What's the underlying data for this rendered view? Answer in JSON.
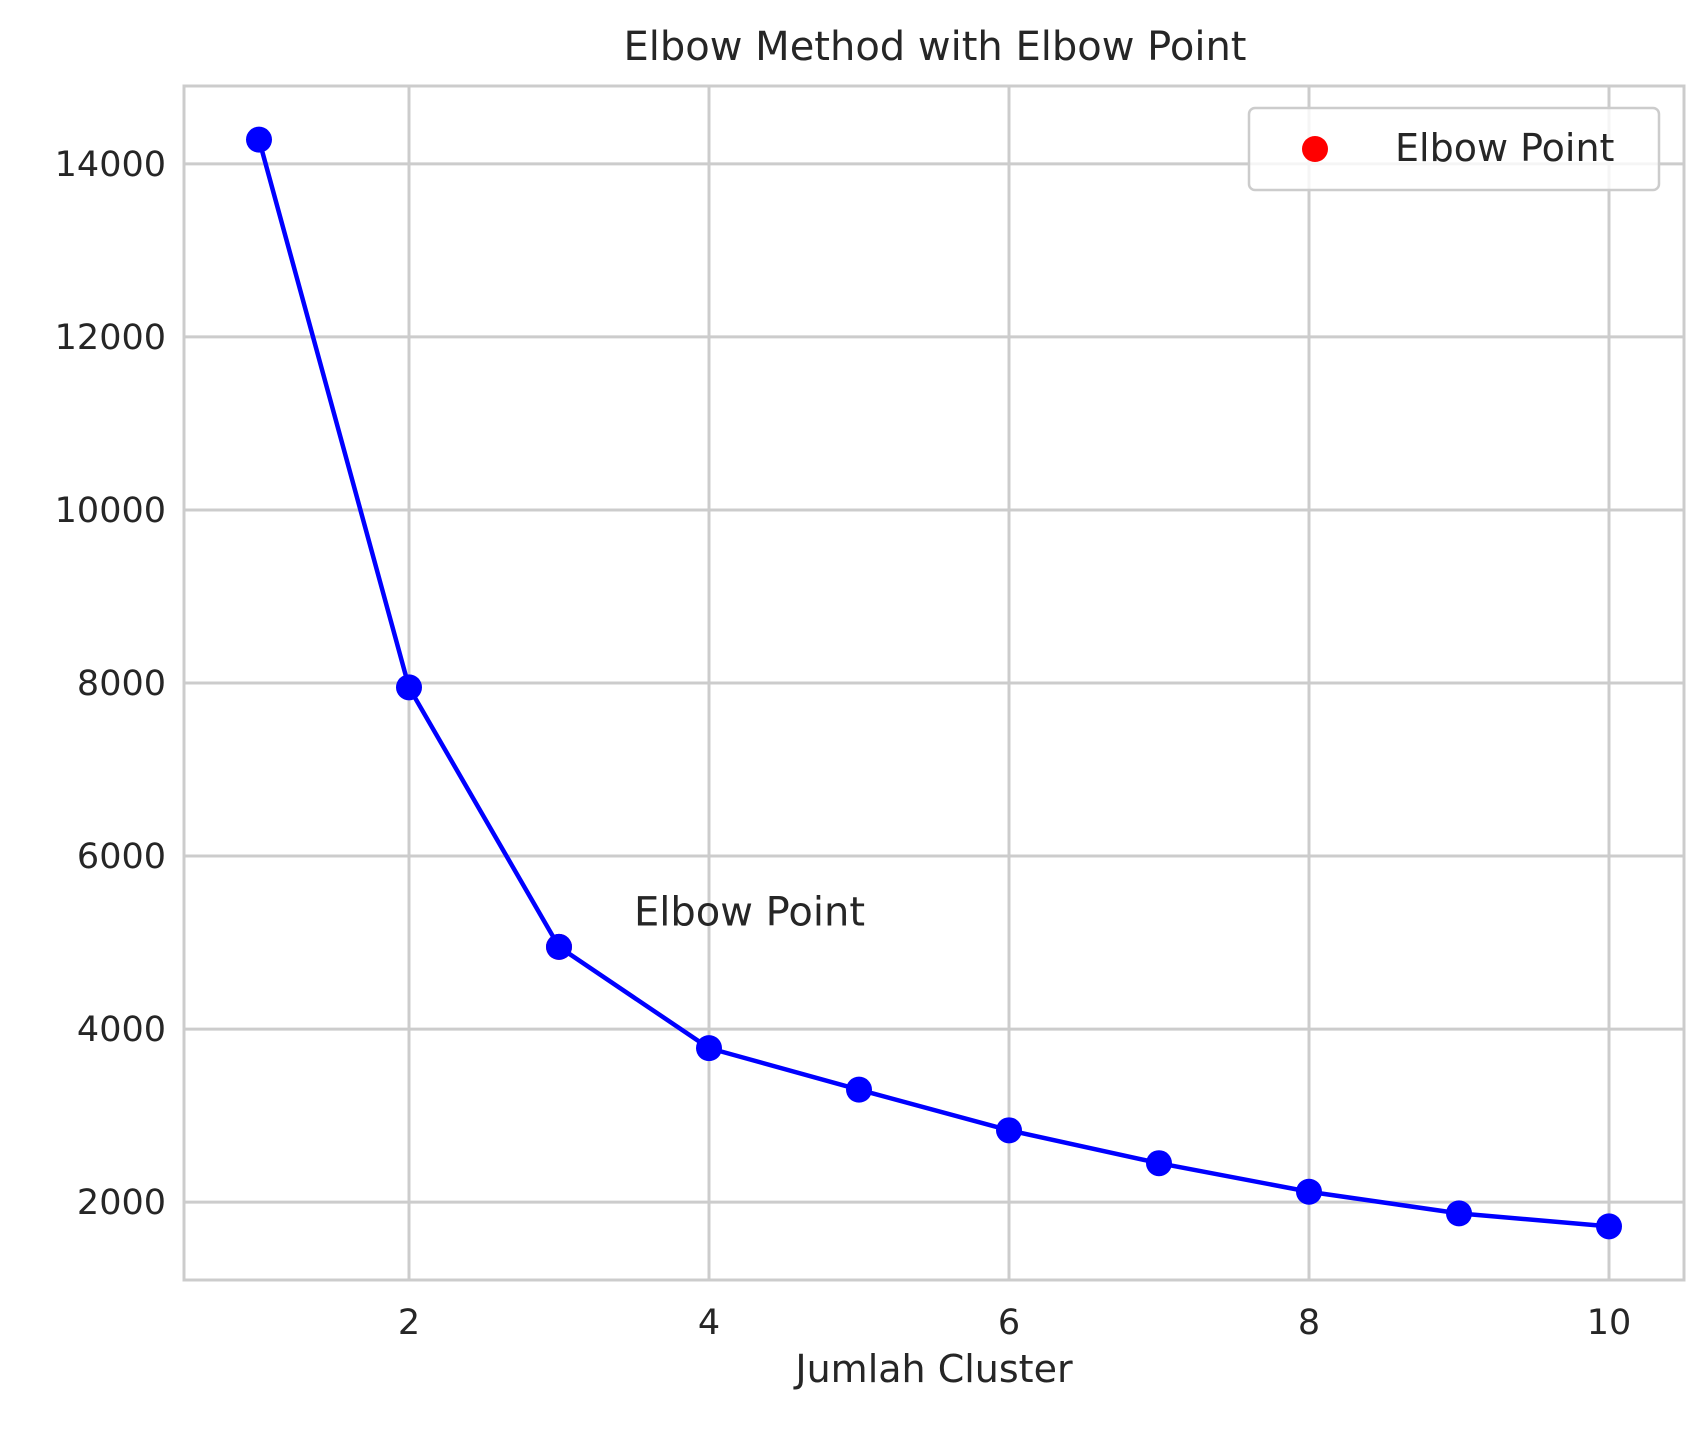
{
  "chart_data": {
    "type": "line",
    "title": "Elbow Method with Elbow Point",
    "xlabel": "Jumlah Cluster",
    "ylabel": "",
    "xlim": [
      0.5,
      10.5
    ],
    "ylim": [
      1100,
      14900
    ],
    "xticks": [
      2,
      4,
      6,
      8,
      10
    ],
    "yticks": [
      2000,
      4000,
      6000,
      8000,
      10000,
      12000,
      14000
    ],
    "xtick_labels": [
      "2",
      "4",
      "6",
      "8",
      "10"
    ],
    "ytick_labels": [
      "2000",
      "4000",
      "6000",
      "8000",
      "10000",
      "12000",
      "14000"
    ],
    "grid": true,
    "series": [
      {
        "x": [
          1,
          2,
          3,
          4,
          5,
          6,
          7,
          8,
          9,
          10
        ],
        "values": [
          14280,
          7950,
          4950,
          3780,
          3300,
          2830,
          2450,
          2120,
          1870,
          1720
        ],
        "color": "#0000ff",
        "marker": "circle"
      }
    ],
    "elbow_point": {
      "x": 3,
      "y": 4950,
      "color": "#ff0000"
    },
    "annotation": {
      "text": "Elbow Point",
      "x": 3.5,
      "y": 5200
    },
    "legend": {
      "position": "top-right",
      "entries": [
        {
          "label": "Elbow Point",
          "color": "#ff0000",
          "marker": "circle"
        }
      ]
    }
  }
}
